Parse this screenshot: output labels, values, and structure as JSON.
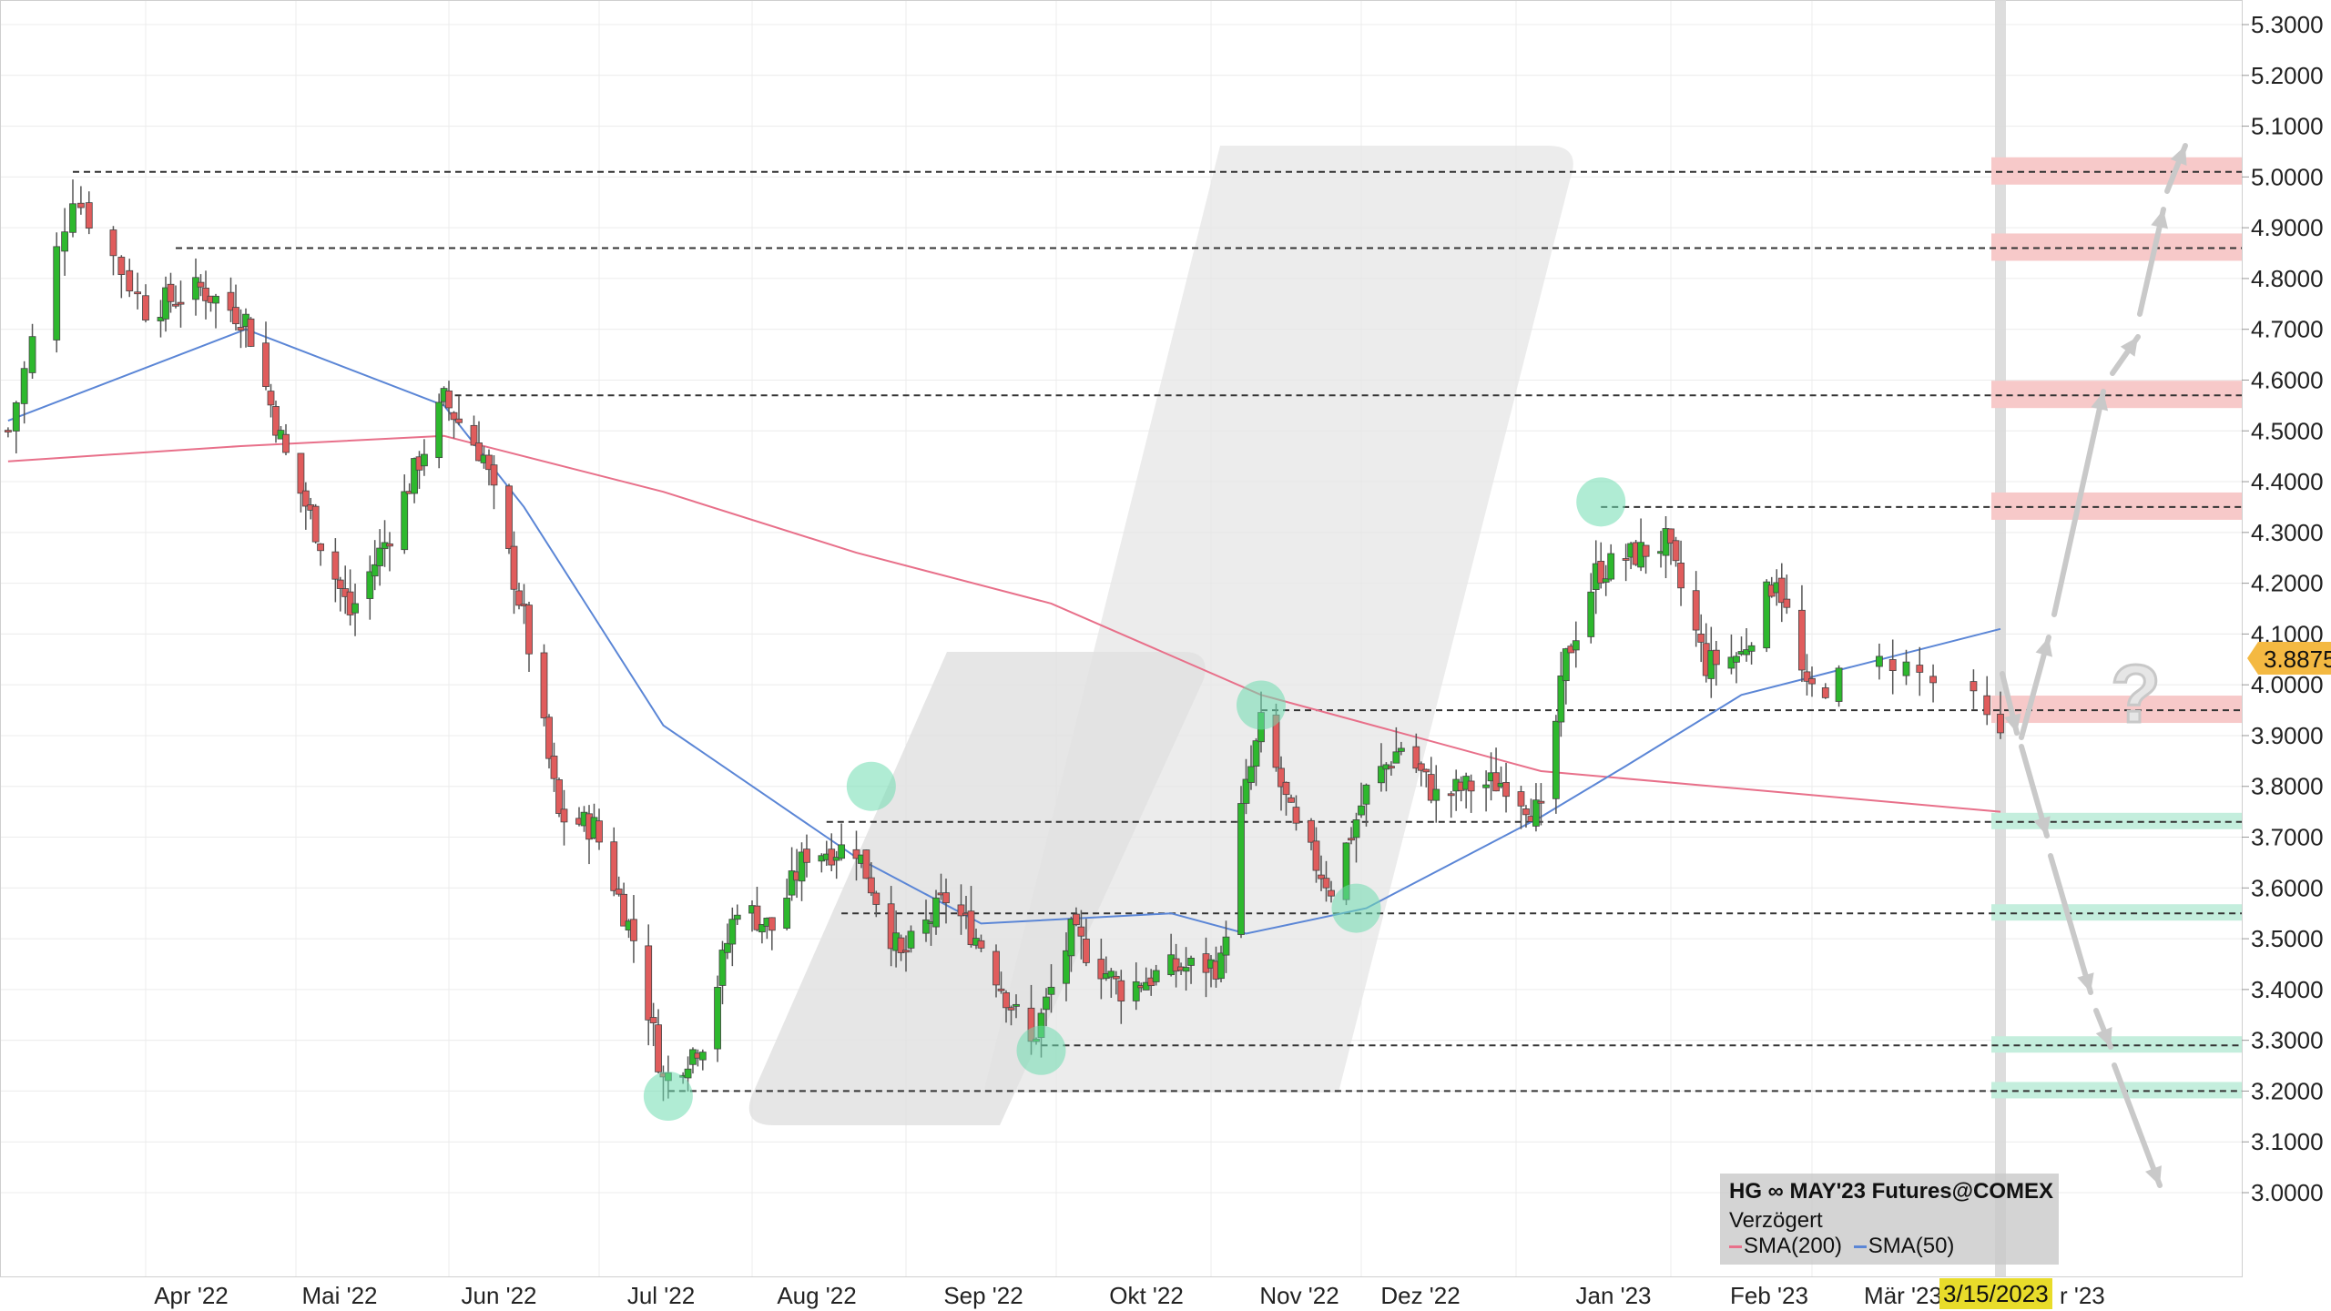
{
  "chart_data": {
    "type": "candlestick",
    "instrument": "HG ∞ MAY'23 Futures@COMEX",
    "status": "Verzögert",
    "last_price": "3.8875",
    "current_date_label": "3/15/2023",
    "ylim": [
      2.9,
      5.35
    ],
    "y_ticks": [
      "5.3000",
      "5.2000",
      "5.1000",
      "5.0000",
      "4.9000",
      "4.8000",
      "4.7000",
      "4.6000",
      "4.5000",
      "4.4000",
      "4.3000",
      "4.2000",
      "4.1000",
      "4.0000",
      "3.9000",
      "3.8000",
      "3.7000",
      "3.6000",
      "3.5000",
      "3.4000",
      "3.3000",
      "3.2000",
      "3.1000",
      "3.0000"
    ],
    "x_ticks": [
      "Apr '22",
      "Mai '22",
      "Jun '22",
      "Jul '22",
      "Aug '22",
      "Sep '22",
      "Okt '22",
      "Nov '22",
      "Dez '22",
      "Jan '23",
      "Feb '23",
      "Mär '23",
      "Apr '23"
    ],
    "legend": [
      {
        "name": "SMA(200)",
        "color": "#e8708a"
      },
      {
        "name": "SMA(50)",
        "color": "#5b86d6"
      }
    ],
    "resistance_levels": [
      5.01,
      4.86,
      4.57,
      4.35,
      3.95
    ],
    "support_levels": [
      3.73,
      3.55,
      3.29,
      3.2
    ],
    "highlight_points": [
      {
        "date": "2022-07-15",
        "value": 3.19,
        "color": "green"
      },
      {
        "date": "2022-08-25",
        "value": 3.8,
        "color": "green"
      },
      {
        "date": "2022-09-28",
        "value": 3.28,
        "color": "green"
      },
      {
        "date": "2022-11-11",
        "value": 3.96,
        "color": "green"
      },
      {
        "date": "2022-11-30",
        "value": 3.56,
        "color": "green"
      },
      {
        "date": "2023-01-18",
        "value": 4.36,
        "color": "green"
      }
    ],
    "colors": {
      "up": "#2db82d",
      "down": "#e05c5c",
      "sma200": "#e8708a",
      "sma50": "#5b86d6",
      "resistance_zone": "#f7c9c9",
      "support_zone": "#c4eedd"
    },
    "series_keypoints": {
      "close": [
        [
          "2022-03-15",
          4.5
        ],
        [
          "2022-03-23",
          4.97
        ],
        [
          "2022-04-01",
          4.74
        ],
        [
          "2022-04-12",
          4.78
        ],
        [
          "2022-04-21",
          4.72
        ],
        [
          "2022-04-29",
          4.45
        ],
        [
          "2022-05-12",
          4.14
        ],
        [
          "2022-05-20",
          4.3
        ],
        [
          "2022-05-31",
          4.56
        ],
        [
          "2022-06-08",
          4.45
        ],
        [
          "2022-06-16",
          4.13
        ],
        [
          "2022-06-23",
          3.74
        ],
        [
          "2022-06-30",
          3.72
        ],
        [
          "2022-07-08",
          3.5
        ],
        [
          "2022-07-14",
          3.22
        ],
        [
          "2022-07-22",
          3.3
        ],
        [
          "2022-07-29",
          3.57
        ],
        [
          "2022-08-05",
          3.52
        ],
        [
          "2022-08-12",
          3.67
        ],
        [
          "2022-08-22",
          3.68
        ],
        [
          "2022-08-31",
          3.46
        ],
        [
          "2022-09-09",
          3.58
        ],
        [
          "2022-09-16",
          3.49
        ],
        [
          "2022-09-26",
          3.29
        ],
        [
          "2022-10-04",
          3.51
        ],
        [
          "2022-10-14",
          3.4
        ],
        [
          "2022-10-24",
          3.44
        ],
        [
          "2022-11-03",
          3.45
        ],
        [
          "2022-11-07",
          3.75
        ],
        [
          "2022-11-11",
          3.92
        ],
        [
          "2022-11-18",
          3.71
        ],
        [
          "2022-11-25",
          3.6
        ],
        [
          "2022-12-02",
          3.79
        ],
        [
          "2022-12-09",
          3.88
        ],
        [
          "2022-12-16",
          3.78
        ],
        [
          "2022-12-23",
          3.8
        ],
        [
          "2022-12-30",
          3.81
        ],
        [
          "2023-01-06",
          3.74
        ],
        [
          "2023-01-11",
          4.05
        ],
        [
          "2023-01-17",
          4.22
        ],
        [
          "2023-01-23",
          4.25
        ],
        [
          "2023-01-31",
          4.28
        ],
        [
          "2023-02-08",
          4.04
        ],
        [
          "2023-02-15",
          4.06
        ],
        [
          "2023-02-22",
          4.22
        ],
        [
          "2023-02-28",
          3.98
        ],
        [
          "2023-03-07",
          4.05
        ],
        [
          "2023-03-13",
          3.96
        ],
        [
          "2023-03-15",
          3.8875
        ]
      ],
      "sma50": [
        [
          "2022-03-15",
          4.52
        ],
        [
          "2022-04-21",
          4.7
        ],
        [
          "2022-05-31",
          4.55
        ],
        [
          "2022-06-16",
          4.35
        ],
        [
          "2022-07-14",
          3.92
        ],
        [
          "2022-08-22",
          3.66
        ],
        [
          "2022-09-16",
          3.53
        ],
        [
          "2022-10-24",
          3.55
        ],
        [
          "2022-11-08",
          3.51
        ],
        [
          "2022-12-02",
          3.56
        ],
        [
          "2023-01-06",
          3.74
        ],
        [
          "2023-01-23",
          3.84
        ],
        [
          "2023-02-15",
          3.98
        ],
        [
          "2023-03-15",
          4.11
        ]
      ],
      "sma200": [
        [
          "2022-03-15",
          4.44
        ],
        [
          "2022-04-20",
          4.47
        ],
        [
          "2022-05-31",
          4.49
        ],
        [
          "2022-07-14",
          4.38
        ],
        [
          "2022-08-22",
          4.26
        ],
        [
          "2022-09-30",
          4.16
        ],
        [
          "2022-11-11",
          3.98
        ],
        [
          "2023-01-06",
          3.83
        ],
        [
          "2023-03-15",
          3.75
        ]
      ]
    },
    "title": "",
    "xlabel": "",
    "ylabel": ""
  },
  "legend_text": {
    "sma200_label": "SMA(200)",
    "sma50_label": "SMA(50)"
  },
  "annotation": {
    "question_mark": "?"
  }
}
